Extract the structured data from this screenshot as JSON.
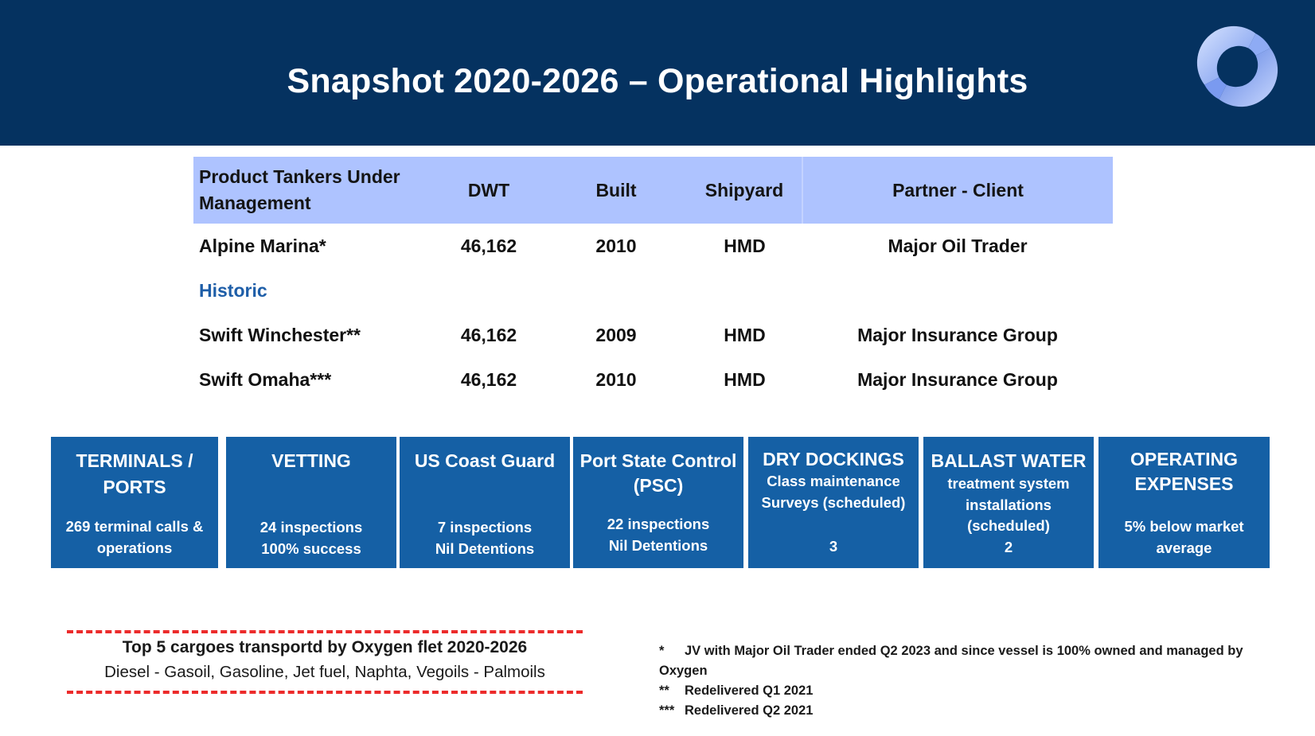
{
  "header": {
    "title": "Snapshot 2020-2026 – Operational Highlights",
    "background": "#053260",
    "logo_icon": "rotating-ring-logo-icon"
  },
  "fleet_table": {
    "header_background": "#aec3ff",
    "columns": [
      "Product Tankers Under Management",
      "DWT",
      "Built",
      "Shipyard",
      "Partner - Client"
    ],
    "current": [
      {
        "name": "Alpine Marina*",
        "dwt": "46,162",
        "built": "2010",
        "shipyard": "HMD",
        "partner": "Major Oil Trader"
      }
    ],
    "historic_label": "Historic",
    "historic_color": "#1e5ea8",
    "historic": [
      {
        "name": "Swift Winchester**",
        "dwt": "46,162",
        "built": "2009",
        "shipyard": "HMD",
        "partner": "Major Insurance Group"
      },
      {
        "name": "Swift Omaha***",
        "dwt": "46,162",
        "built": "2010",
        "shipyard": "HMD",
        "partner": "Major Insurance Group"
      }
    ]
  },
  "highlight_boxes": {
    "background": "#1560a5",
    "items": [
      {
        "title": [
          "TERMINALS /",
          "PORTS"
        ],
        "detail": [
          "269 terminal calls &",
          "operations"
        ]
      },
      {
        "title": [
          "VETTING"
        ],
        "detail": [
          "24 inspections",
          "100% success"
        ]
      },
      {
        "title": [
          "US Coast Guard"
        ],
        "detail": [
          "7 inspections",
          "Nil Detentions"
        ]
      },
      {
        "title": [
          "Port State Control",
          "(PSC)"
        ],
        "detail": [
          "22 inspections",
          "Nil Detentions"
        ]
      },
      {
        "title": [
          "DRY DOCKINGS"
        ],
        "detail": [
          "Class maintenance",
          "Surveys (scheduled)"
        ],
        "value": "3"
      },
      {
        "title": [
          "BALLAST WATER"
        ],
        "detail": [
          "treatment system",
          "installations",
          "(scheduled)",
          "2"
        ]
      },
      {
        "title": [
          "OPERATING",
          "EXPENSES"
        ],
        "detail": [
          "5% below market",
          "average"
        ]
      }
    ]
  },
  "cargoes": {
    "title": "Top 5 cargoes transportd by Oxygen flet 2020-2026",
    "list": "Diesel - Gasoil, Gasoline, Jet fuel, Naphta, Vegoils - Palmoils",
    "dash_color": "#ec2b2b"
  },
  "footnotes": [
    {
      "mark": "*",
      "text": "JV with Major Oil Trader ended Q2 2023 and since vessel is 100% owned and managed by",
      "continuation": "Oxygen"
    },
    {
      "mark": "**",
      "text": "Redelivered Q1 2021"
    },
    {
      "mark": "***",
      "text": "Redelivered Q2 2021"
    }
  ]
}
